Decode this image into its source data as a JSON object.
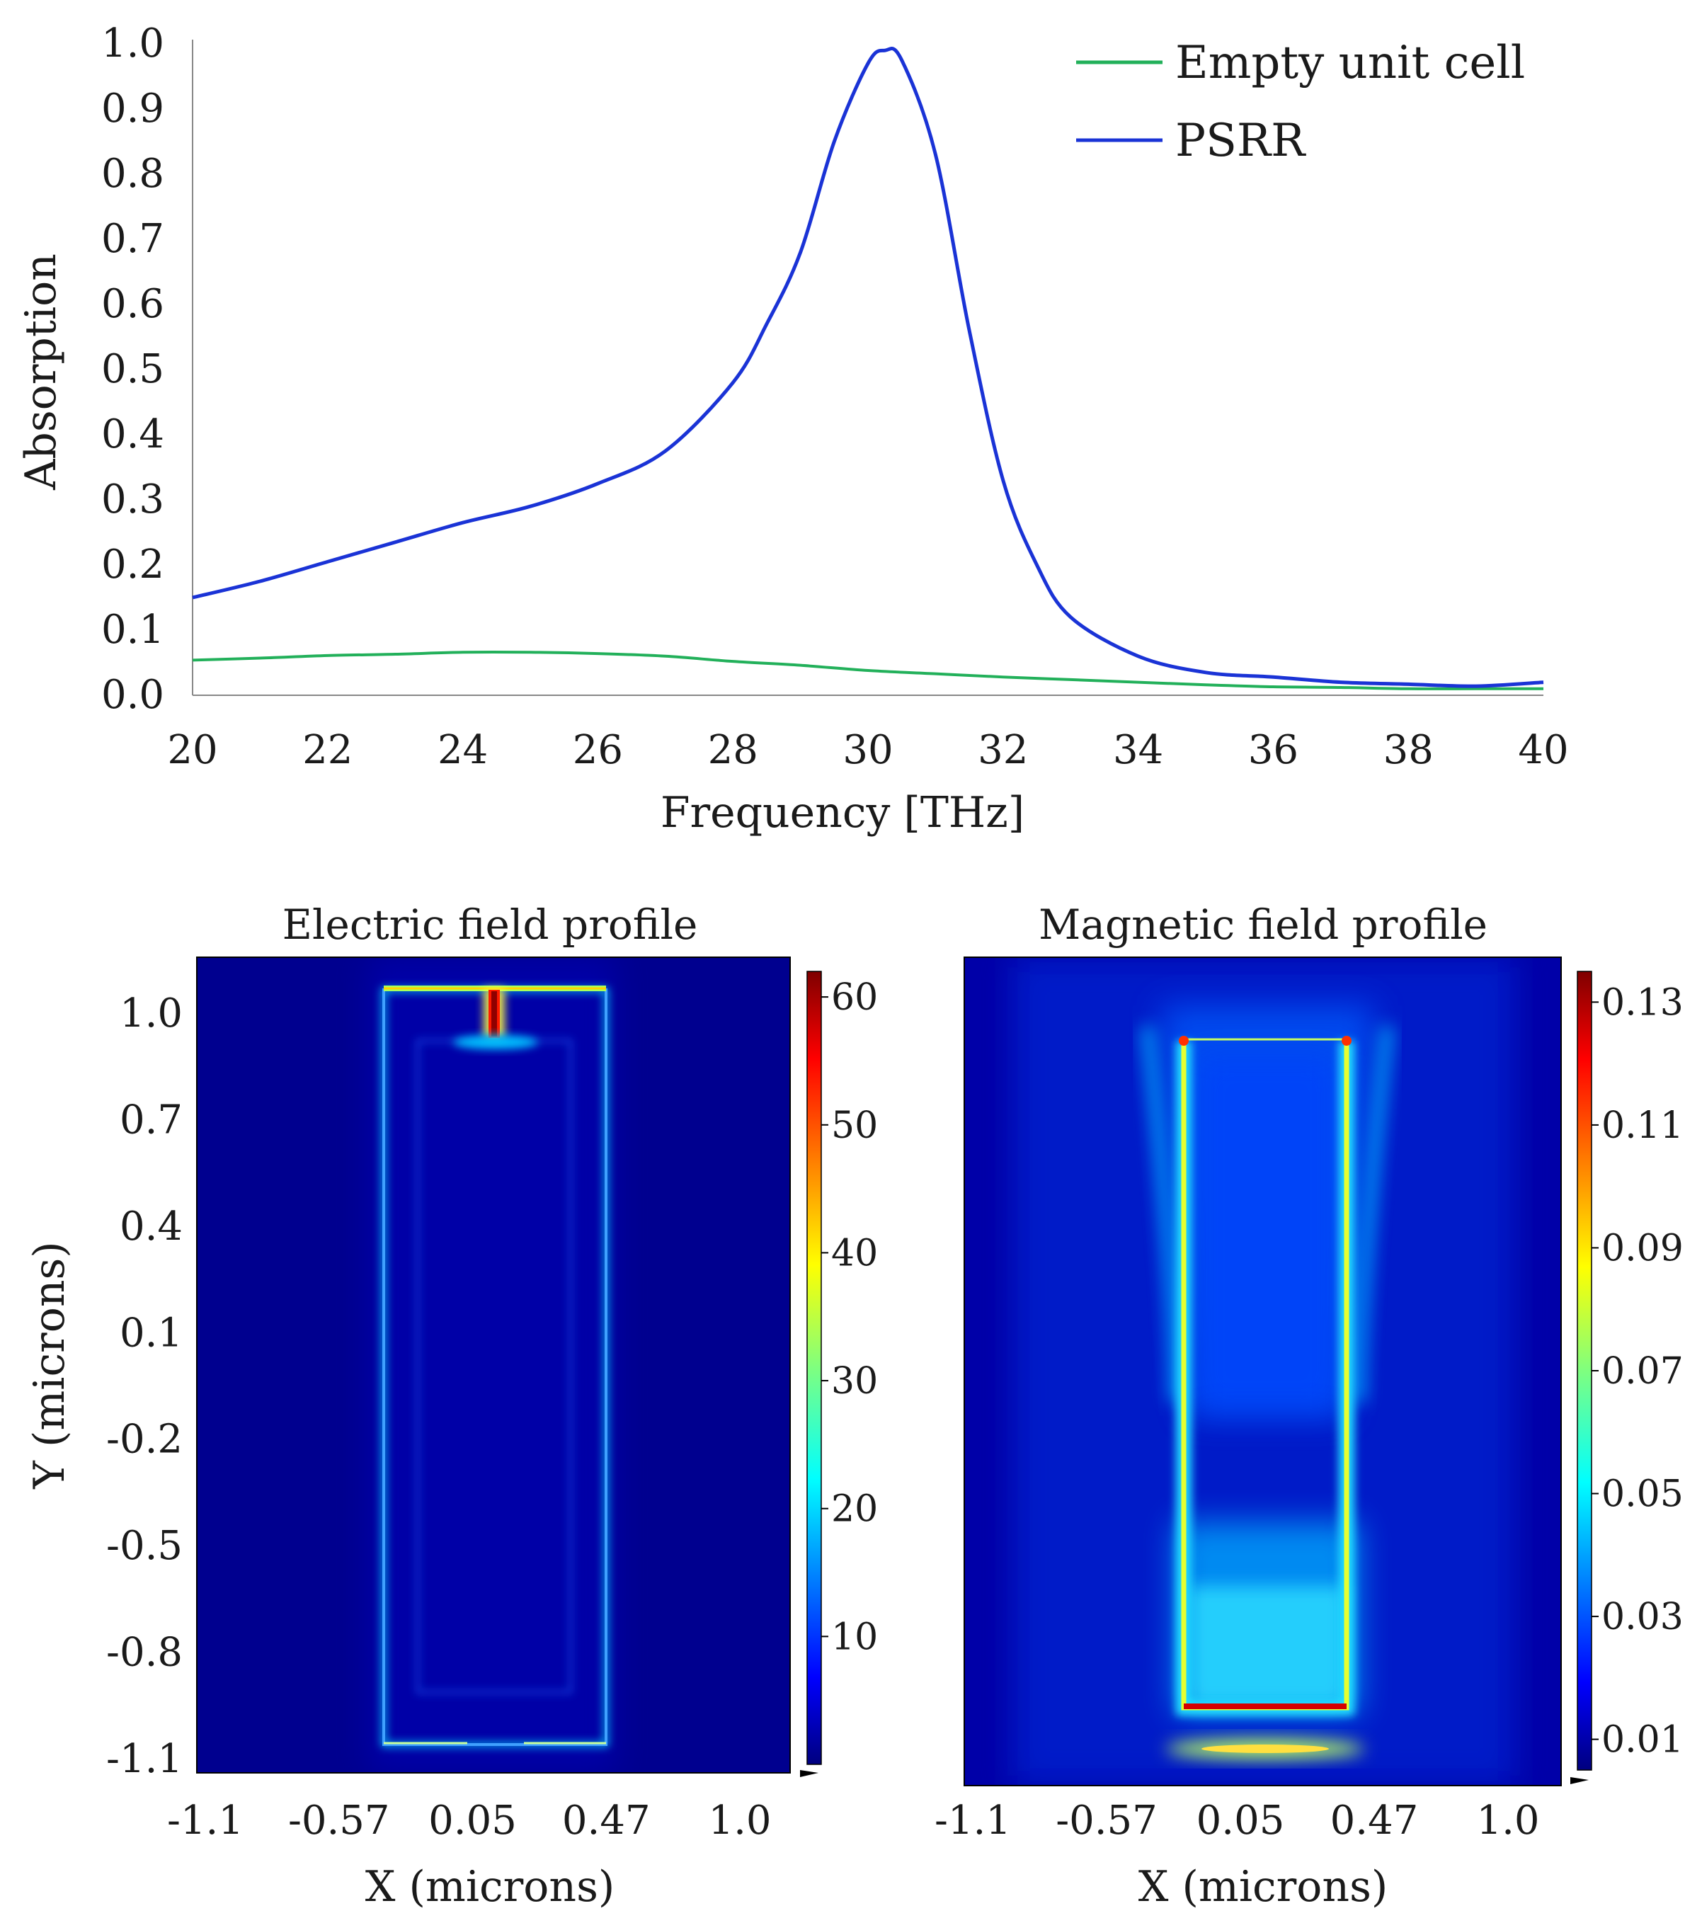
{
  "chart_data": [
    {
      "type": "line",
      "xlabel": "Frequency [THz]",
      "ylabel": "Absorption",
      "xlim": [
        20,
        40
      ],
      "ylim": [
        0,
        1.0
      ],
      "xticks": [
        "20",
        "22",
        "24",
        "26",
        "28",
        "30",
        "32",
        "34",
        "36",
        "38",
        "40"
      ],
      "yticks": [
        "0.0",
        "0.1",
        "0.2",
        "0.3",
        "0.4",
        "0.5",
        "0.6",
        "0.7",
        "0.8",
        "0.9",
        "1.0"
      ],
      "legend_position": "top-right",
      "grid": false,
      "series": [
        {
          "name": "Empty unit cell",
          "color": "#22b05a",
          "x": [
            20,
            21,
            22,
            23,
            24,
            25,
            26,
            27,
            28,
            29,
            30,
            31,
            32,
            33,
            34,
            35,
            36,
            37,
            38,
            39,
            40
          ],
          "y": [
            0.054,
            0.057,
            0.061,
            0.063,
            0.066,
            0.066,
            0.064,
            0.06,
            0.052,
            0.046,
            0.038,
            0.033,
            0.028,
            0.024,
            0.02,
            0.016,
            0.013,
            0.012,
            0.01,
            0.01,
            0.01
          ]
        },
        {
          "name": "PSRR",
          "color": "#1a33d6",
          "x": [
            20,
            21,
            22,
            23,
            24,
            25,
            26,
            27,
            28,
            28.5,
            29,
            29.5,
            30,
            30.25,
            30.5,
            31,
            31.5,
            32,
            32.5,
            33,
            34,
            35,
            36,
            37,
            38,
            39,
            40
          ],
          "y": [
            0.15,
            0.175,
            0.205,
            0.235,
            0.265,
            0.29,
            0.325,
            0.375,
            0.48,
            0.57,
            0.68,
            0.85,
            0.97,
            0.99,
            0.975,
            0.83,
            0.56,
            0.33,
            0.2,
            0.12,
            0.06,
            0.035,
            0.028,
            0.02,
            0.017,
            0.014,
            0.02
          ]
        }
      ]
    },
    {
      "type": "heatmap",
      "title": "Electric field profile",
      "xlabel": "X (microns)",
      "ylabel": "Y (microns)",
      "xticks": [
        "-1.1",
        "-0.57",
        "0.05",
        "0.47",
        "1.0"
      ],
      "yticks": [
        "1.0",
        "0.7",
        "0.4",
        "0.1",
        "-0.2",
        "-0.5",
        "-0.8",
        "-1.1"
      ],
      "colorbar_ticks": [
        "60",
        "50",
        "40",
        "30",
        "20",
        "10"
      ],
      "colorbar_range": [
        0,
        62
      ],
      "colormap": "jet"
    },
    {
      "type": "heatmap",
      "title": "Magnetic field profile",
      "xlabel": "X (microns)",
      "xticks": [
        "-1.1",
        "-0.57",
        "0.05",
        "0.47",
        "1.0"
      ],
      "colorbar_ticks": [
        "0.13",
        "0.11",
        "0.09",
        "0.07",
        "0.05",
        "0.03",
        "0.01"
      ],
      "colorbar_range": [
        0.005,
        0.135
      ],
      "colormap": "jet"
    }
  ]
}
